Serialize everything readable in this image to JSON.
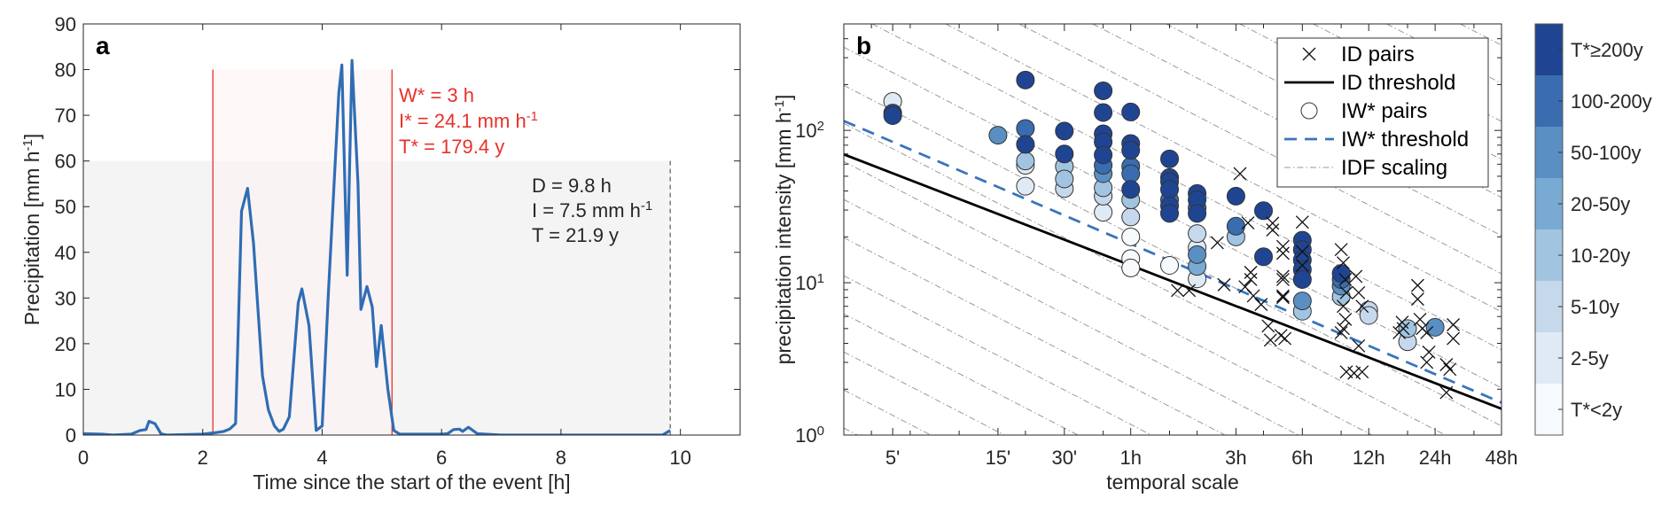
{
  "colors": {
    "series_line": "#2f6db5",
    "red": "#e8312a",
    "window_fill": "#fdf1f1",
    "event_fill": "#f4f4f4",
    "threshold_id": "#000000",
    "threshold_iw": "#3a74bd",
    "idf": "#9a9a9a"
  },
  "chart_data": [
    {
      "panel": "a",
      "type": "line",
      "xlabel": "Time since the start of the event [h]",
      "ylabel": "Precipitation [mm h",
      "ylabel_sup": "-1",
      "ylabel_end": "]",
      "xlim": [
        0,
        11
      ],
      "ylim": [
        0,
        90
      ],
      "xticks": [
        0,
        2,
        4,
        6,
        8,
        10
      ],
      "yticks": [
        0,
        10,
        20,
        30,
        40,
        50,
        60,
        70,
        80,
        90
      ],
      "grid": false,
      "x": [
        0,
        0.3,
        0.5,
        0.8,
        0.95,
        1.05,
        1.1,
        1.2,
        1.3,
        1.4,
        2.0,
        2.2,
        2.35,
        2.45,
        2.55,
        2.65,
        2.75,
        2.85,
        3.0,
        3.1,
        3.2,
        3.28,
        3.35,
        3.45,
        3.6,
        3.66,
        3.78,
        3.9,
        4.0,
        4.1,
        4.28,
        4.33,
        4.42,
        4.5,
        4.6,
        4.65,
        4.75,
        4.84,
        4.91,
        4.99,
        5.1,
        5.2,
        5.3,
        6.0,
        6.1,
        6.2,
        6.3,
        6.35,
        6.45,
        6.6,
        7.0,
        9.7,
        9.83
      ],
      "y": [
        0.3,
        0.2,
        0,
        0.2,
        1,
        1.2,
        3,
        2.5,
        0.3,
        0,
        0.2,
        0.5,
        0.8,
        1.3,
        2.5,
        49,
        54,
        42,
        13,
        5.5,
        2,
        0.8,
        1.3,
        4,
        29,
        32,
        24,
        1,
        2,
        30,
        75,
        81,
        35,
        82,
        55,
        27.5,
        32.5,
        28,
        15,
        24,
        10,
        1,
        0.2,
        0.2,
        0.3,
        1.2,
        1.3,
        0.8,
        1.7,
        0.3,
        0,
        0,
        1
      ],
      "window_region": {
        "x": [
          2.17,
          5.17
        ],
        "y": [
          0,
          80
        ]
      },
      "event_region": {
        "x": [
          0,
          9.83
        ],
        "y": [
          0,
          60
        ]
      },
      "annotations_red": [
        {
          "text": "W* = 3 h",
          "sup": ""
        },
        {
          "text": "I* = 24.1 mm h",
          "sup": "-1"
        },
        {
          "text": "T* = 179.4 y",
          "sup": ""
        }
      ],
      "annotations_black": [
        {
          "text": "D = 9.8 h",
          "sup": ""
        },
        {
          "text": "I = 7.5 mm h",
          "sup": "-1"
        },
        {
          "text": "T = 21.9 y",
          "sup": ""
        }
      ]
    },
    {
      "panel": "b",
      "type": "scatter",
      "xlabel": "temporal scale",
      "ylabel": "precipitation intensity [mm h",
      "ylabel_sup": "-1",
      "ylabel_end": "]",
      "xscale": "log",
      "yscale": "log",
      "xlim_hours": [
        0.05,
        48
      ],
      "ylim": [
        1,
        500
      ],
      "xticks": [
        {
          "hours": 0.0833,
          "label": "5'"
        },
        {
          "hours": 0.25,
          "label": "15'"
        },
        {
          "hours": 0.5,
          "label": "30'"
        },
        {
          "hours": 1,
          "label": "1h"
        },
        {
          "hours": 3,
          "label": "3h"
        },
        {
          "hours": 6,
          "label": "6h"
        },
        {
          "hours": 12,
          "label": "12h"
        },
        {
          "hours": 24,
          "label": "24h"
        },
        {
          "hours": 48,
          "label": "48h"
        }
      ],
      "yticks": [
        {
          "value": 1,
          "base": "10",
          "exp": "0"
        },
        {
          "value": 10,
          "base": "10",
          "exp": "1"
        },
        {
          "value": 100,
          "base": "10",
          "exp": "2"
        }
      ],
      "legend": {
        "placement": "top-right",
        "entries": [
          "ID pairs",
          "ID threshold",
          "IW* pairs",
          "IW* threshold",
          "IDF scaling"
        ]
      },
      "id_threshold": {
        "coef": 13,
        "exponent": -0.56
      },
      "iw_threshold": {
        "coef": 18,
        "exponent": -0.62
      },
      "idf_scaling": {
        "exponent": -0.75,
        "coef_log10_start": -0.93,
        "coef_log10_step": 0.25,
        "count": 21
      },
      "colorbar": {
        "labels": [
          "T*≥200y",
          "100-200y",
          "50-100y",
          "20-50y",
          "10-20y",
          "5-10y",
          "2-5y",
          "T*<2y"
        ],
        "colors": [
          "#1f4592",
          "#3a6cb0",
          "#5a8fc4",
          "#79aad3",
          "#a1c5e0",
          "#c6d8ec",
          "#e0eaf5",
          "#f7fafd"
        ]
      },
      "iw_pairs": [
        [
          0.0833,
          155,
          6
        ],
        [
          0.0833,
          130,
          0
        ],
        [
          0.0833,
          125,
          0
        ],
        [
          0.25,
          93,
          2
        ],
        [
          0.333,
          214,
          0
        ],
        [
          0.333,
          103,
          1
        ],
        [
          0.333,
          81,
          0
        ],
        [
          0.333,
          63,
          4
        ],
        [
          0.333,
          59,
          6
        ],
        [
          0.333,
          43,
          6
        ],
        [
          0.5,
          99,
          0
        ],
        [
          0.5,
          70,
          0
        ],
        [
          0.5,
          58,
          4
        ],
        [
          0.5,
          48,
          4
        ],
        [
          0.5,
          41.5,
          5
        ],
        [
          0.75,
          182,
          0
        ],
        [
          0.75,
          131,
          0
        ],
        [
          0.75,
          95,
          0
        ],
        [
          0.75,
          84,
          0
        ],
        [
          0.75,
          69,
          0
        ],
        [
          0.75,
          59,
          1
        ],
        [
          0.75,
          52,
          2
        ],
        [
          0.75,
          42,
          4
        ],
        [
          0.75,
          37,
          5
        ],
        [
          0.75,
          29,
          6
        ],
        [
          1,
          132,
          0
        ],
        [
          1,
          82,
          0
        ],
        [
          1,
          74,
          0
        ],
        [
          1,
          58,
          1
        ],
        [
          1,
          52,
          1
        ],
        [
          1,
          41,
          0
        ],
        [
          1,
          35,
          4
        ],
        [
          1,
          27,
          5
        ],
        [
          1,
          20,
          7
        ],
        [
          1,
          14.4,
          7
        ],
        [
          1,
          12.5,
          7
        ],
        [
          1.5,
          65,
          0
        ],
        [
          1.5,
          49,
          0
        ],
        [
          1.5,
          46,
          0
        ],
        [
          1.5,
          41,
          0
        ],
        [
          1.5,
          35,
          1
        ],
        [
          1.5,
          32,
          0
        ],
        [
          1.5,
          28.5,
          0
        ],
        [
          1.5,
          13,
          7
        ],
        [
          2,
          38.5,
          0
        ],
        [
          2,
          35,
          0
        ],
        [
          2,
          31,
          1
        ],
        [
          2,
          28.5,
          0
        ],
        [
          2,
          21,
          5
        ],
        [
          2,
          17,
          6
        ],
        [
          2,
          15.3,
          2
        ],
        [
          2,
          12.8,
          3
        ],
        [
          2,
          10.6,
          6
        ],
        [
          3,
          37,
          0
        ],
        [
          3,
          23.5,
          1
        ],
        [
          3,
          20,
          4
        ],
        [
          4,
          29.7,
          0
        ],
        [
          4,
          14.8,
          0
        ],
        [
          6,
          19,
          0
        ],
        [
          6,
          16.5,
          0
        ],
        [
          6,
          14.1,
          0
        ],
        [
          6,
          12.2,
          0
        ],
        [
          6,
          10.5,
          0
        ],
        [
          6,
          7.6,
          2
        ],
        [
          6,
          6.5,
          4
        ],
        [
          9,
          11.5,
          0
        ],
        [
          9,
          10.5,
          1
        ],
        [
          9,
          9.5,
          2
        ],
        [
          9,
          8.1,
          4
        ],
        [
          12,
          6.6,
          5
        ],
        [
          12,
          6.1,
          5
        ],
        [
          18,
          5.0,
          4
        ],
        [
          18,
          4.1,
          5
        ],
        [
          24,
          5.1,
          2
        ]
      ],
      "id_pairs": [
        [
          2.47,
          18.3
        ],
        [
          1.63,
          8.9
        ],
        [
          1.84,
          8.9
        ],
        [
          2.65,
          9.7
        ],
        [
          3.13,
          52
        ],
        [
          3.4,
          24.7
        ],
        [
          4.4,
          24.6
        ],
        [
          4.4,
          22.2
        ],
        [
          4.9,
          17.3
        ],
        [
          4.9,
          15.6
        ],
        [
          4.9,
          11
        ],
        [
          4.9,
          10.5
        ],
        [
          4.9,
          8.2
        ],
        [
          4.9,
          8.0
        ],
        [
          3.5,
          11.7
        ],
        [
          3.5,
          10.5
        ],
        [
          3.3,
          9.4
        ],
        [
          3.6,
          8.2
        ],
        [
          3.9,
          7.2
        ],
        [
          4.2,
          5.2
        ],
        [
          4.8,
          4.5
        ],
        [
          5,
          4.3
        ],
        [
          4.3,
          4.2
        ],
        [
          6,
          25
        ],
        [
          6,
          16
        ],
        [
          6,
          13
        ],
        [
          9,
          16.5
        ],
        [
          9.2,
          13.5
        ],
        [
          9.4,
          10.5
        ],
        [
          9.5,
          8.6
        ],
        [
          9.2,
          7.0
        ],
        [
          9.4,
          5.75
        ],
        [
          9.2,
          5.0
        ],
        [
          9,
          4.7
        ],
        [
          10.5,
          11
        ],
        [
          10.8,
          8.6
        ],
        [
          11.2,
          7.0
        ],
        [
          10.8,
          3.85
        ],
        [
          9.5,
          2.6
        ],
        [
          10.3,
          2.55
        ],
        [
          11.2,
          2.6
        ],
        [
          17,
          5.5
        ],
        [
          16.5,
          4.7
        ],
        [
          17.2,
          5.0
        ],
        [
          20,
          9.6
        ],
        [
          20,
          7.8
        ],
        [
          20.5,
          5.75
        ],
        [
          21,
          5.0
        ],
        [
          22,
          4.7
        ],
        [
          22.5,
          3.5
        ],
        [
          22,
          3.0
        ],
        [
          27,
          2.9
        ],
        [
          28,
          2.7
        ],
        [
          27,
          1.9
        ],
        [
          29,
          5.3
        ],
        [
          29,
          4.3
        ]
      ]
    }
  ]
}
